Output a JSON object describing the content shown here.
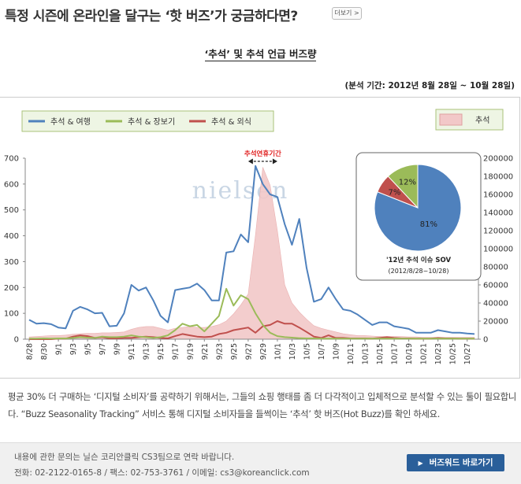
{
  "header": {
    "title": "특정 시즌에 온라인을 달구는 ‘핫 버즈’가 궁금하다면?",
    "more_label": "더보기 >"
  },
  "chart_title": "‘추석’ 및 추석 언급 버즈량",
  "period": "(분석 기간: 2012년 8월 28일 ~ 10월 28일)",
  "colors": {
    "travel": "#4f81bd",
    "shopping": "#9bbb59",
    "eatout": "#c0504d",
    "chuseok_area": "#f2c8c8",
    "pie_blue": "#4f81bd",
    "pie_red": "#c0504d",
    "pie_green": "#9bbb59"
  },
  "chart_data": {
    "type": "line",
    "x": [
      "8/28",
      "8/29",
      "8/30",
      "8/31",
      "9/1",
      "9/2",
      "9/3",
      "9/4",
      "9/5",
      "9/6",
      "9/7",
      "9/8",
      "9/9",
      "9/10",
      "9/11",
      "9/12",
      "9/13",
      "9/14",
      "9/15",
      "9/16",
      "9/17",
      "9/18",
      "9/19",
      "9/20",
      "9/21",
      "9/22",
      "9/23",
      "9/24",
      "9/25",
      "9/26",
      "9/27",
      "9/28",
      "9/29",
      "9/30",
      "10/1",
      "10/2",
      "10/3",
      "10/4",
      "10/5",
      "10/6",
      "10/7",
      "10/8",
      "10/9",
      "10/10",
      "10/11",
      "10/12",
      "10/13",
      "10/14",
      "10/15",
      "10/16",
      "10/17",
      "10/18",
      "10/19",
      "10/20",
      "10/21",
      "10/22",
      "10/23",
      "10/24",
      "10/25",
      "10/26",
      "10/27",
      "10/28"
    ],
    "x_tick_labels": [
      "8/28",
      "8/30",
      "9/1",
      "9/3",
      "9/5",
      "9/7",
      "9/9",
      "9/11",
      "9/13",
      "9/15",
      "9/17",
      "9/19",
      "9/21",
      "9/23",
      "9/25",
      "9/27",
      "9/29",
      "10/1",
      "10/3",
      "10/5",
      "10/7",
      "10/9",
      "10/11",
      "10/13",
      "10/15",
      "10/17",
      "10/19",
      "10/21",
      "10/23",
      "10/25",
      "10/27"
    ],
    "y_left": {
      "min": 0,
      "max": 700,
      "ticks": [
        0,
        100,
        200,
        300,
        400,
        500,
        600,
        700
      ]
    },
    "y_right": {
      "min": 0,
      "max": 200000,
      "ticks": [
        0,
        20000,
        40000,
        60000,
        80000,
        100000,
        120000,
        140000,
        160000,
        180000,
        200000
      ]
    },
    "series": [
      {
        "name": "추석 & 여행",
        "axis": "left",
        "values": [
          75,
          60,
          62,
          58,
          45,
          42,
          110,
          125,
          115,
          100,
          102,
          50,
          52,
          100,
          210,
          188,
          200,
          150,
          90,
          65,
          190,
          195,
          200,
          215,
          190,
          150,
          150,
          335,
          340,
          405,
          375,
          670,
          600,
          560,
          550,
          445,
          365,
          465,
          275,
          145,
          155,
          200,
          155,
          115,
          110,
          95,
          75,
          55,
          65,
          65,
          50,
          45,
          40,
          25,
          25,
          25,
          35,
          30,
          25,
          25,
          22,
          20
        ]
      },
      {
        "name": "추석 & 장보기",
        "axis": "left",
        "values": [
          2,
          2,
          3,
          2,
          3,
          3,
          5,
          8,
          6,
          5,
          10,
          8,
          8,
          10,
          15,
          10,
          8,
          5,
          8,
          15,
          35,
          60,
          50,
          55,
          30,
          60,
          90,
          195,
          130,
          170,
          155,
          100,
          55,
          25,
          12,
          8,
          6,
          4,
          3,
          3,
          2,
          2,
          2,
          2,
          2,
          2,
          2,
          2,
          2,
          2,
          2,
          2,
          2,
          2,
          2,
          2,
          2,
          2,
          2,
          2,
          2,
          2
        ]
      },
      {
        "name": "추석 & 외식",
        "axis": "left",
        "values": [
          0,
          0,
          0,
          0,
          2,
          2,
          10,
          15,
          12,
          5,
          8,
          3,
          3,
          5,
          5,
          8,
          10,
          8,
          5,
          3,
          12,
          20,
          15,
          10,
          8,
          10,
          20,
          25,
          35,
          40,
          45,
          25,
          50,
          55,
          70,
          60,
          60,
          45,
          28,
          10,
          5,
          15,
          5,
          5,
          3,
          3,
          3,
          2,
          5,
          8,
          5,
          3,
          3,
          2,
          2,
          2,
          5,
          3,
          3,
          2,
          2,
          2
        ]
      },
      {
        "name": "추석",
        "axis": "right",
        "type": "area",
        "values": [
          2500,
          3000,
          3500,
          4000,
          4000,
          4500,
          5500,
          6000,
          6500,
          6500,
          7000,
          7000,
          7500,
          8000,
          11000,
          13000,
          14000,
          14000,
          12000,
          10000,
          12000,
          13000,
          14000,
          13000,
          13000,
          14000,
          16000,
          20000,
          28000,
          38000,
          50000,
          115000,
          190000,
          170000,
          120000,
          60000,
          40000,
          30000,
          22000,
          15000,
          12000,
          10000,
          8000,
          6000,
          5000,
          4000,
          4000,
          3500,
          3000,
          3000,
          3000,
          3000,
          2500,
          2500,
          2000,
          2000,
          2000,
          2000,
          2000,
          2000,
          2000,
          2000
        ]
      }
    ],
    "legend": [
      "추석 & 여행",
      "추석 & 장보기",
      "추석 & 외식"
    ],
    "legend_area": "추석",
    "legend_placement": "top",
    "annotation": "추석연휴기간",
    "watermark": "nielsen",
    "pie": {
      "slices": [
        {
          "label": "81%",
          "value": 81,
          "color_key": "pie_blue"
        },
        {
          "label": "7%",
          "value": 7,
          "color_key": "pie_red"
        },
        {
          "label": "12%",
          "value": 12,
          "color_key": "pie_green"
        }
      ],
      "caption_line1": "'12년 추석 이슈 SOV",
      "caption_line2": "(2012/8/28~10/28)"
    },
    "grid": false
  },
  "description": {
    "text": "평균 30% 더 구매하는 ‘디지털 소비자’를 공략하기 위해서는, 그들의 쇼핑 행태를 좀 더 다각적이고 입체적으로 분석할 수 있는 툴이 필요합니다. “Buzz Seasonality Tracking” 서비스 통해 디지털 소비자들을 들썩이는 ‘추석’ 핫 버즈(Hot Buzz)를 확인 하세요."
  },
  "footer": {
    "line1": "내용에 관한 문의는 닐슨 코리안클릭 CS3팀으로 연락 바랍니다.",
    "line2": "전화: 02-2122-0165-8 / 팩스: 02-753-3761 / 이메일: cs3@koreanclick.com",
    "button_label": "버즈워드 바로가기",
    "button_arrow": "▶"
  }
}
